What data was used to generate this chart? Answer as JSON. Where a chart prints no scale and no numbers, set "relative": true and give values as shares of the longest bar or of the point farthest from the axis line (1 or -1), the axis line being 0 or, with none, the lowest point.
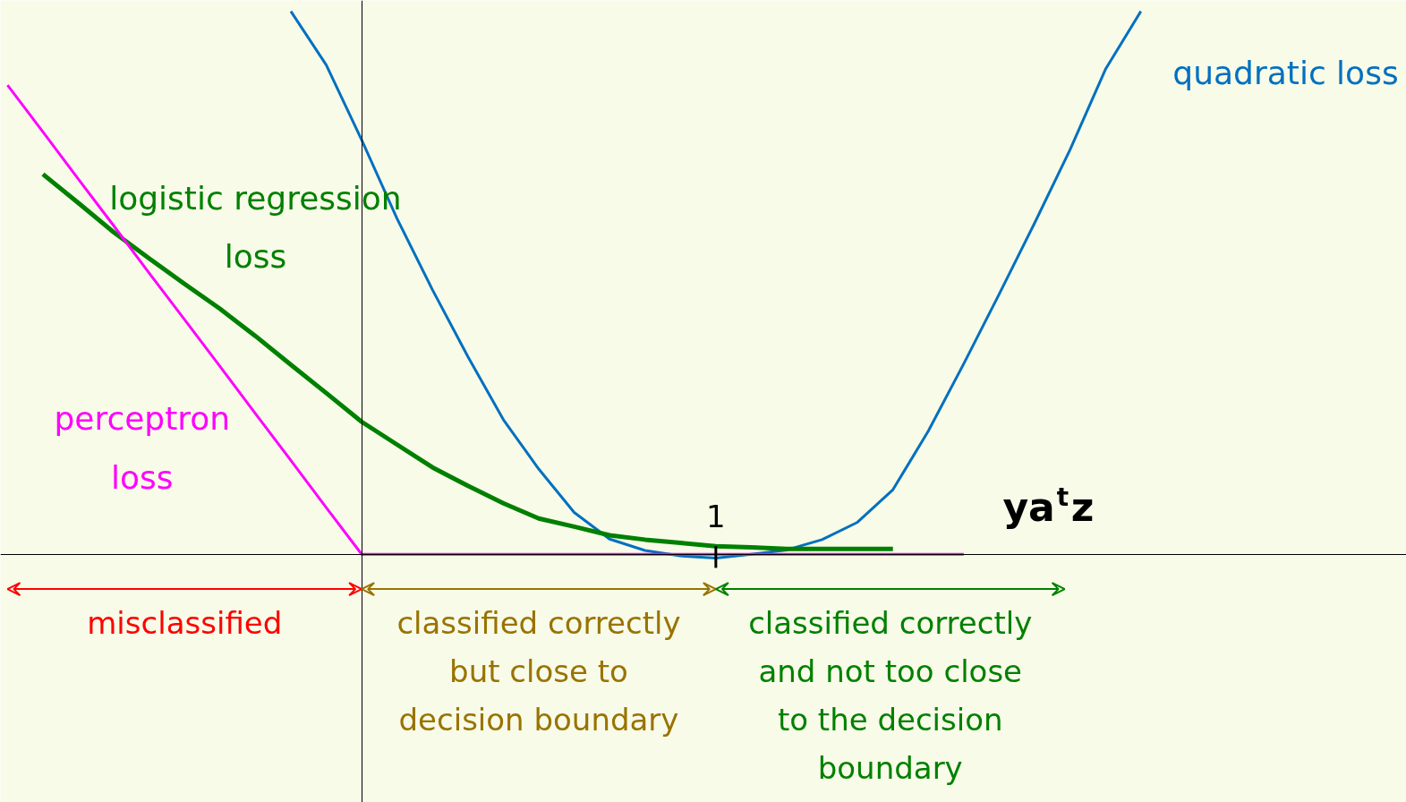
{
  "chart_data": {
    "type": "line",
    "relative": true,
    "xlabel": "ya$^{t}$z",
    "categories": [
      null,
      null,
      null,
      null,
      null,
      null,
      null,
      null,
      null,
      null,
      null,
      null,
      null,
      null,
      null,
      null,
      null,
      null,
      null,
      null,
      null,
      null,
      null,
      null,
      null,
      null,
      null,
      null,
      null,
      null,
      null,
      null,
      null
    ],
    "series": [
      {
        "name": "quadratic loss",
        "color": "#0070c0",
        "values": [
          null,
          null,
          null,
          null,
          null,
          null,
          null,
          null,
          1.0,
          0.901,
          0.763,
          0.618,
          0.487,
          0.364,
          0.248,
          0.157,
          0.077,
          0.028,
          0.007,
          -0.003,
          -0.007,
          0.0,
          0.008,
          0.027,
          0.059,
          0.119,
          0.227,
          0.351,
          0.479,
          0.61,
          0.745,
          0.893,
          1.0
        ]
      },
      {
        "name": "logistic regression\nloss",
        "color": "#008000",
        "values": [
          null,
          0.7,
          0.647,
          0.593,
          0.545,
          0.498,
          0.452,
          0.402,
          0.349,
          0.297,
          0.244,
          0.202,
          0.16,
          0.126,
          0.094,
          0.066,
          0.051,
          0.035,
          0.027,
          0.021,
          0.015,
          0.013,
          0.01,
          0.01,
          0.01,
          0.01,
          null,
          null,
          null,
          null,
          null,
          null,
          null
        ]
      },
      {
        "name": "perceptron\nloss",
        "color": "#ff00ff",
        "values": [
          0.864,
          0.778,
          0.691,
          0.605,
          0.518,
          0.432,
          0.346,
          0.259,
          0.173,
          0.086,
          0,
          0,
          0,
          0,
          0,
          0,
          0,
          0,
          0,
          0,
          0,
          0,
          0,
          0,
          0,
          0,
          0,
          0,
          null,
          null,
          null,
          null,
          null
        ]
      }
    ],
    "annotations": [
      "1",
      "misclassified",
      "classified correctly\nbut close to\ndecision boundary",
      "classified correctly\nand not too close\nto the decision\nboundary"
    ]
  }
}
